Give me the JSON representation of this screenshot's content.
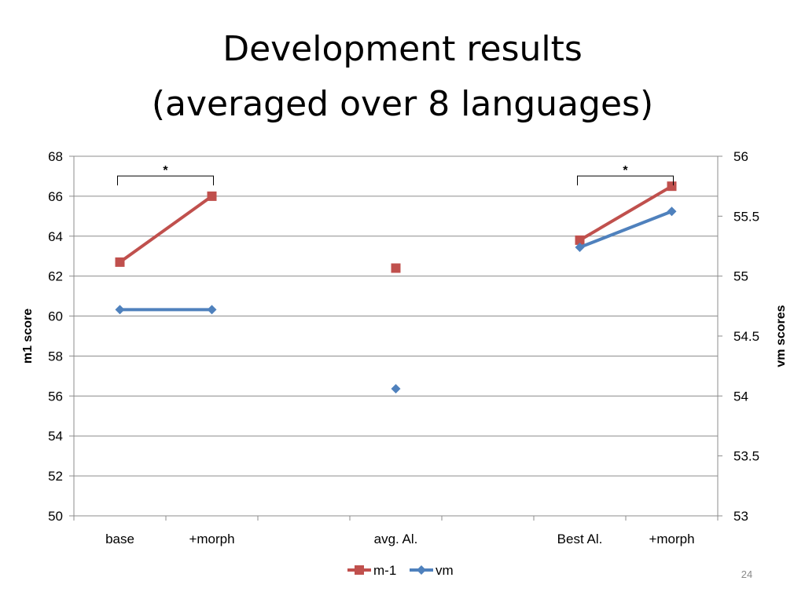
{
  "slide": {
    "title_line1": "Development results",
    "title_line2": "(averaged over 8 languages)",
    "page_number": "24"
  },
  "chart_data": {
    "type": "line",
    "categories": [
      "base",
      "+morph",
      "",
      "avg. Al.",
      "",
      "Best Al.",
      "+morph"
    ],
    "y_left": {
      "label": "m1 score",
      "range": [
        50,
        68
      ],
      "ticks": [
        50,
        52,
        54,
        56,
        58,
        60,
        62,
        64,
        66,
        68
      ]
    },
    "y_right": {
      "label": "vm scores",
      "range": [
        53,
        56
      ],
      "ticks": [
        53,
        53.5,
        54,
        54.5,
        55,
        55.5,
        56
      ]
    },
    "grid": true,
    "legend_position": "bottom",
    "series": [
      {
        "name": "m-1",
        "axis": "left",
        "color": "#C0504D",
        "marker": "square",
        "segments": [
          [
            {
              "category": "base",
              "y": 62.7
            },
            {
              "category": "+morph",
              "y": 66.0
            }
          ],
          [
            {
              "category": "avg. Al.",
              "y": 62.4
            }
          ],
          [
            {
              "category": "Best Al.",
              "y": 63.8
            },
            {
              "category": "+morph",
              "y": 66.5
            }
          ]
        ]
      },
      {
        "name": "vm",
        "axis": "right",
        "color": "#4F81BD",
        "marker": "diamond",
        "segments": [
          [
            {
              "category": "base",
              "y": 54.72
            },
            {
              "category": "+morph",
              "y": 54.72
            }
          ],
          [
            {
              "category": "avg. Al.",
              "y": 54.06
            }
          ],
          [
            {
              "category": "Best Al.",
              "y": 55.24
            },
            {
              "category": "+morph",
              "y": 55.54
            }
          ]
        ]
      }
    ],
    "annotations": [
      {
        "text": "*",
        "from": "base",
        "to": "+morph"
      },
      {
        "text": "*",
        "from": "Best Al.",
        "to": "+morph"
      }
    ]
  }
}
